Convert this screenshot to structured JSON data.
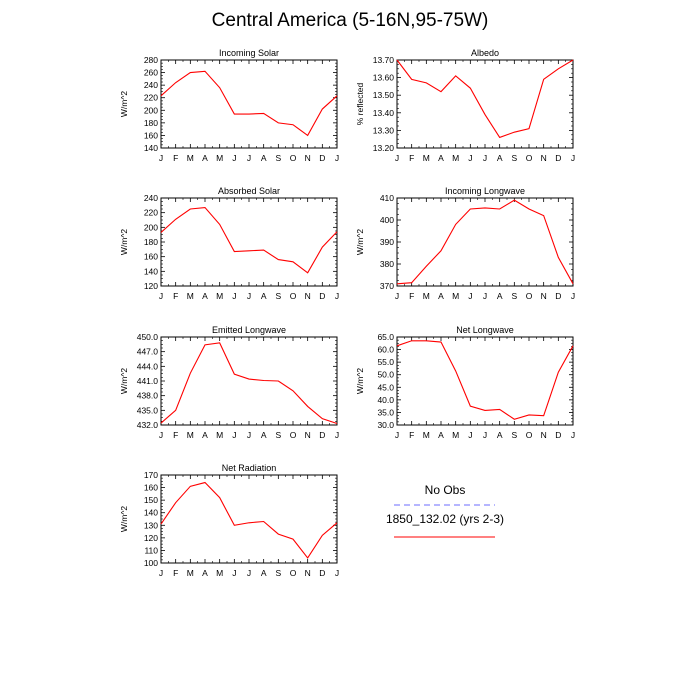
{
  "figure": {
    "title": "Central America (5-16N,95-75W)"
  },
  "legend": {
    "entries": [
      {
        "label": "No Obs",
        "color": "#6b6bff",
        "dashed": true
      },
      {
        "label": "1850_132.02 (yrs 2-3)",
        "color": "#ff0000",
        "dashed": false
      }
    ]
  },
  "chart_data": [
    {
      "type": "line",
      "title": "Incoming Solar",
      "ylabel": "W/m^2",
      "categories": [
        "J",
        "F",
        "M",
        "A",
        "M",
        "J",
        "J",
        "A",
        "S",
        "O",
        "N",
        "D",
        "J"
      ],
      "ylim": [
        140,
        280
      ],
      "yticks": [
        "140",
        "160",
        "180",
        "200",
        "220",
        "240",
        "260",
        "280"
      ],
      "series": [
        {
          "name": "1850_132.02 (yrs 2-3)",
          "color": "#ff0000",
          "values": [
            223,
            244,
            260,
            262,
            236,
            194,
            194,
            195,
            180,
            177,
            160,
            202,
            223
          ]
        }
      ]
    },
    {
      "type": "line",
      "title": "Albedo",
      "ylabel": "% reflected",
      "categories": [
        "J",
        "F",
        "M",
        "A",
        "M",
        "J",
        "J",
        "A",
        "S",
        "O",
        "N",
        "D",
        "J"
      ],
      "ylim": [
        13.2,
        13.7
      ],
      "yticks": [
        "13.20",
        "13.30",
        "13.40",
        "13.50",
        "13.60",
        "13.70"
      ],
      "series": [
        {
          "name": "1850_132.02 (yrs 2-3)",
          "color": "#ff0000",
          "values": [
            13.7,
            13.59,
            13.57,
            13.52,
            13.61,
            13.54,
            13.39,
            13.26,
            13.29,
            13.31,
            13.59,
            13.65,
            13.7
          ]
        }
      ]
    },
    {
      "type": "line",
      "title": "Absorbed Solar",
      "ylabel": "W/m^2",
      "categories": [
        "J",
        "F",
        "M",
        "A",
        "M",
        "J",
        "J",
        "A",
        "S",
        "O",
        "N",
        "D",
        "J"
      ],
      "ylim": [
        120,
        240
      ],
      "yticks": [
        "120",
        "140",
        "160",
        "180",
        "200",
        "220",
        "240"
      ],
      "series": [
        {
          "name": "1850_132.02 (yrs 2-3)",
          "color": "#ff0000",
          "values": [
            193,
            211,
            225,
            227,
            204,
            167,
            168,
            169,
            156,
            153,
            138,
            173,
            194
          ]
        }
      ]
    },
    {
      "type": "line",
      "title": "Incoming Longwave",
      "ylabel": "W/m^2",
      "categories": [
        "J",
        "F",
        "M",
        "A",
        "M",
        "J",
        "J",
        "A",
        "S",
        "O",
        "N",
        "D",
        "J"
      ],
      "ylim": [
        370,
        410
      ],
      "yticks": [
        "370",
        "380",
        "390",
        "400",
        "410"
      ],
      "series": [
        {
          "name": "1850_132.02 (yrs 2-3)",
          "color": "#ff0000",
          "values": [
            371,
            371.5,
            379,
            386,
            398,
            405,
            405.5,
            405,
            409,
            405,
            402,
            383,
            371
          ]
        }
      ]
    },
    {
      "type": "line",
      "title": "Emitted Longwave",
      "ylabel": "W/m^2",
      "categories": [
        "J",
        "F",
        "M",
        "A",
        "M",
        "J",
        "J",
        "A",
        "S",
        "O",
        "N",
        "D",
        "J"
      ],
      "ylim": [
        432,
        450
      ],
      "yticks": [
        "432.0",
        "435.0",
        "438.0",
        "441.0",
        "444.0",
        "447.0",
        "450.0"
      ],
      "series": [
        {
          "name": "1850_132.02 (yrs 2-3)",
          "color": "#ff0000",
          "values": [
            432.4,
            435.0,
            442.6,
            448.4,
            448.8,
            442.4,
            441.4,
            441.1,
            441.0,
            439.0,
            435.8,
            433.3,
            432.3
          ]
        }
      ]
    },
    {
      "type": "line",
      "title": "Net Longwave",
      "ylabel": "W/m^2",
      "categories": [
        "J",
        "F",
        "M",
        "A",
        "M",
        "J",
        "J",
        "A",
        "S",
        "O",
        "N",
        "D",
        "J"
      ],
      "ylim": [
        30,
        65
      ],
      "yticks": [
        "30.0",
        "35.0",
        "40.0",
        "45.0",
        "50.0",
        "55.0",
        "60.0",
        "65.0"
      ],
      "series": [
        {
          "name": "1850_132.02 (yrs 2-3)",
          "color": "#ff0000",
          "values": [
            61.5,
            63.5,
            63.5,
            63.0,
            51.5,
            37.5,
            35.8,
            36.2,
            32.3,
            34.0,
            33.7,
            51.0,
            61.5
          ]
        }
      ]
    },
    {
      "type": "line",
      "title": "Net Radiation",
      "ylabel": "W/m^2",
      "categories": [
        "J",
        "F",
        "M",
        "A",
        "M",
        "J",
        "J",
        "A",
        "S",
        "O",
        "N",
        "D",
        "J"
      ],
      "ylim": [
        100,
        170
      ],
      "yticks": [
        "100",
        "110",
        "120",
        "130",
        "140",
        "150",
        "160",
        "170"
      ],
      "series": [
        {
          "name": "1850_132.02 (yrs 2-3)",
          "color": "#ff0000",
          "values": [
            131,
            148,
            161,
            164,
            152,
            130,
            132,
            133,
            123,
            119,
            104,
            122,
            132
          ]
        }
      ]
    }
  ]
}
